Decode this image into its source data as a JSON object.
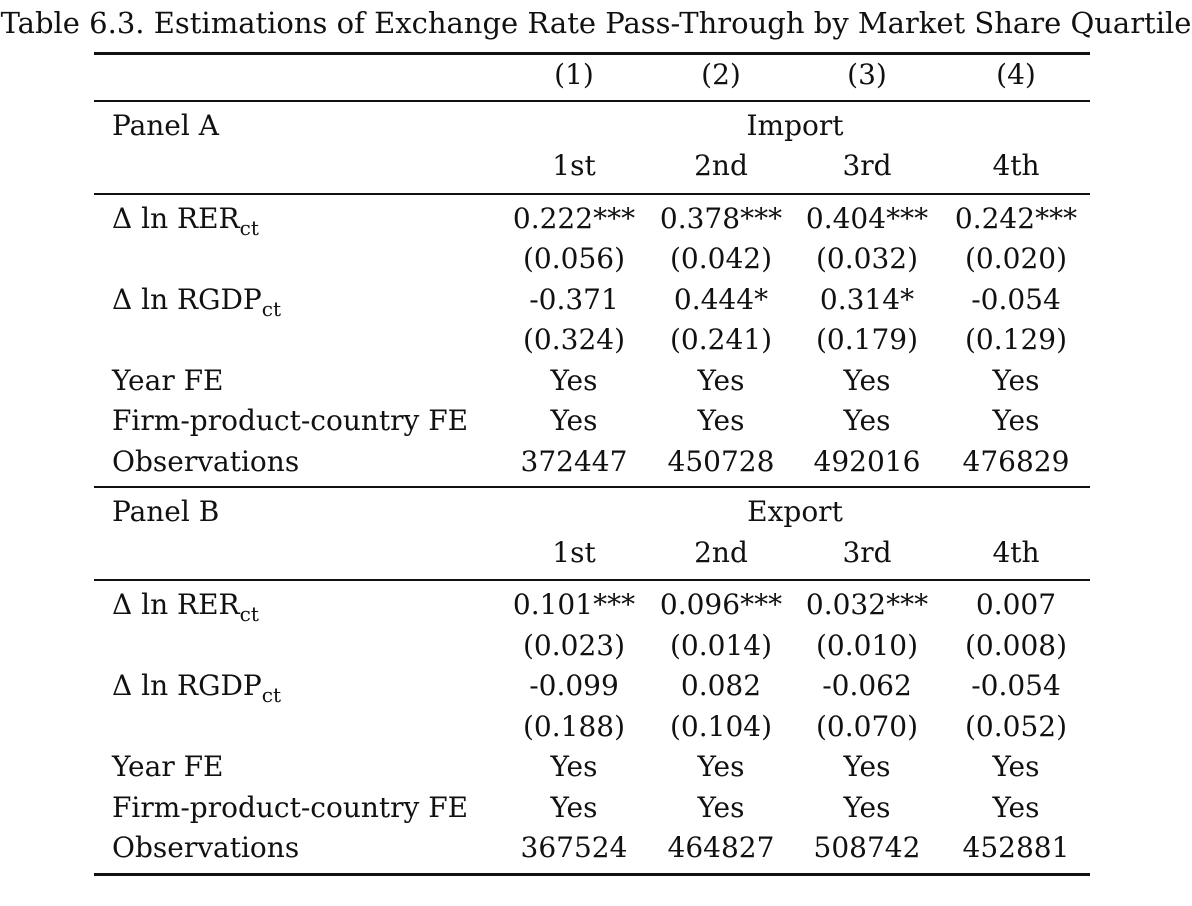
{
  "caption": "Table 6.3. Estimations of Exchange Rate Pass-Through by Market Share Quartile",
  "columns": [
    "(1)",
    "(2)",
    "(3)",
    "(4)"
  ],
  "panels": [
    {
      "label": "Panel A",
      "group": "Import",
      "quartiles": [
        "1st",
        "2nd",
        "3rd",
        "4th"
      ],
      "rer": {
        "var": "Δ ln RER",
        "sub": "ct",
        "coef": [
          "0.222***",
          "0.378***",
          "0.404***",
          "0.242***"
        ],
        "se": [
          "(0.056)",
          "(0.042)",
          "(0.032)",
          "(0.020)"
        ]
      },
      "rgdp": {
        "var": "Δ ln RGDP",
        "sub": "ct",
        "coef": [
          "-0.371",
          "0.444*",
          "0.314*",
          "-0.054"
        ],
        "se": [
          "(0.324)",
          "(0.241)",
          "(0.179)",
          "(0.129)"
        ]
      },
      "year_fe": {
        "label": "Year FE",
        "values": [
          "Yes",
          "Yes",
          "Yes",
          "Yes"
        ]
      },
      "fpc_fe": {
        "label": "Firm-product-country FE",
        "values": [
          "Yes",
          "Yes",
          "Yes",
          "Yes"
        ]
      },
      "obs": {
        "label": "Observations",
        "values": [
          "372447",
          "450728",
          "492016",
          "476829"
        ]
      }
    },
    {
      "label": "Panel B",
      "group": "Export",
      "quartiles": [
        "1st",
        "2nd",
        "3rd",
        "4th"
      ],
      "rer": {
        "var": "Δ ln RER",
        "sub": "ct",
        "coef": [
          "0.101***",
          "0.096***",
          "0.032***",
          "0.007"
        ],
        "se": [
          "(0.023)",
          "(0.014)",
          "(0.010)",
          "(0.008)"
        ]
      },
      "rgdp": {
        "var": "Δ ln RGDP",
        "sub": "ct",
        "coef": [
          "-0.099",
          "0.082",
          "-0.062",
          "-0.054"
        ],
        "se": [
          "(0.188)",
          "(0.104)",
          "(0.070)",
          "(0.052)"
        ]
      },
      "year_fe": {
        "label": "Year FE",
        "values": [
          "Yes",
          "Yes",
          "Yes",
          "Yes"
        ]
      },
      "fpc_fe": {
        "label": "Firm-product-country FE",
        "values": [
          "Yes",
          "Yes",
          "Yes",
          "Yes"
        ]
      },
      "obs": {
        "label": "Observations",
        "values": [
          "367524",
          "464827",
          "508742",
          "452881"
        ]
      }
    }
  ]
}
